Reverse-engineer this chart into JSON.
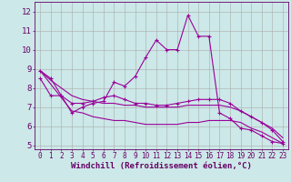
{
  "xlabel": "Windchill (Refroidissement éolien,°C)",
  "background_color": "#cce8e8",
  "grid_color": "#aaaaaa",
  "line_color": "#990099",
  "xlim": [
    -0.5,
    23.5
  ],
  "ylim": [
    4.8,
    12.5
  ],
  "xticks": [
    0,
    1,
    2,
    3,
    4,
    5,
    6,
    7,
    8,
    9,
    10,
    11,
    12,
    13,
    14,
    15,
    16,
    17,
    18,
    19,
    20,
    21,
    22,
    23
  ],
  "yticks": [
    5,
    6,
    7,
    8,
    9,
    10,
    11,
    12
  ],
  "series": [
    {
      "x": [
        0,
        1,
        2,
        3,
        4,
        5,
        6,
        7,
        8,
        9,
        10,
        11,
        12,
        13,
        14,
        15,
        16,
        17,
        18,
        19,
        20,
        21,
        22,
        23
      ],
      "y": [
        8.9,
        8.5,
        7.6,
        6.7,
        7.0,
        7.2,
        7.3,
        8.3,
        8.1,
        8.6,
        9.6,
        10.5,
        10.0,
        10.0,
        11.8,
        10.7,
        10.7,
        6.7,
        6.4,
        5.9,
        5.8,
        5.5,
        5.2,
        5.1
      ],
      "marker": "+"
    },
    {
      "x": [
        0,
        1,
        2,
        3,
        4,
        5,
        6,
        7,
        8,
        9,
        10,
        11,
        12,
        13,
        14,
        15,
        16,
        17,
        18,
        19,
        20,
        21,
        22,
        23
      ],
      "y": [
        8.5,
        7.6,
        7.6,
        7.2,
        7.2,
        7.3,
        7.5,
        7.6,
        7.4,
        7.2,
        7.2,
        7.1,
        7.1,
        7.2,
        7.3,
        7.4,
        7.4,
        7.4,
        7.2,
        6.8,
        6.5,
        6.2,
        5.8,
        5.2
      ],
      "marker": "+"
    },
    {
      "x": [
        0,
        1,
        2,
        3,
        4,
        5,
        6,
        7,
        8,
        9,
        10,
        11,
        12,
        13,
        14,
        15,
        16,
        17,
        18,
        19,
        20,
        21,
        22,
        23
      ],
      "y": [
        8.9,
        8.4,
        8.0,
        7.6,
        7.4,
        7.3,
        7.2,
        7.2,
        7.1,
        7.1,
        7.0,
        7.0,
        7.0,
        7.0,
        7.1,
        7.1,
        7.1,
        7.1,
        7.0,
        6.8,
        6.5,
        6.2,
        5.9,
        5.4
      ],
      "marker": null
    },
    {
      "x": [
        0,
        1,
        2,
        3,
        4,
        5,
        6,
        7,
        8,
        9,
        10,
        11,
        12,
        13,
        14,
        15,
        16,
        17,
        18,
        19,
        20,
        21,
        22,
        23
      ],
      "y": [
        8.9,
        8.2,
        7.5,
        6.8,
        6.7,
        6.5,
        6.4,
        6.3,
        6.3,
        6.2,
        6.1,
        6.1,
        6.1,
        6.1,
        6.2,
        6.2,
        6.3,
        6.3,
        6.3,
        6.2,
        5.9,
        5.7,
        5.4,
        5.1
      ],
      "marker": null
    }
  ],
  "font_size_xlabel": 6.5,
  "font_size_yticks": 6.5,
  "font_size_xticks": 5.5,
  "tick_color": "#660066",
  "axis_color": "#660066"
}
